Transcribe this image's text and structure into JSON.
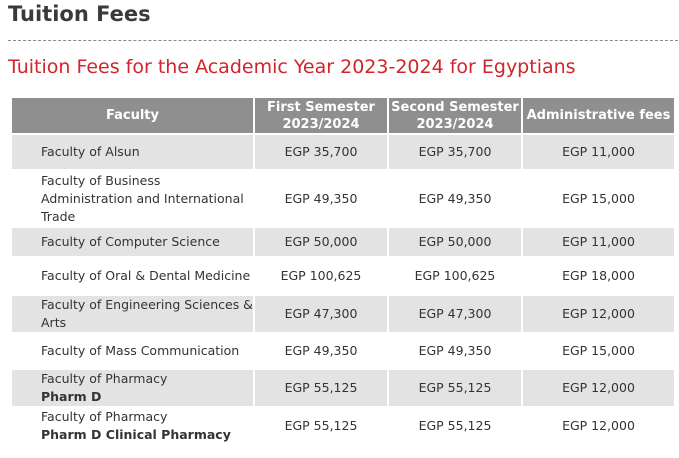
{
  "page": {
    "title": "Tuition Fees",
    "subtitle": "Tuition Fees for the Academic Year 2023-2024 for Egyptians"
  },
  "table": {
    "headers": {
      "faculty": "Faculty",
      "first_semester_line1": "First Semester",
      "first_semester_line2": "2023/2024",
      "second_semester_line1": "Second Semester",
      "second_semester_line2": "2023/2024",
      "admin_fees": "Administrative fees"
    },
    "rows": [
      {
        "faculty": "Faculty of Alsun",
        "program": "",
        "first": "EGP 35,700",
        "second": "EGP 35,700",
        "admin": "EGP 11,000"
      },
      {
        "faculty": "Faculty of Business Administration and International Trade",
        "program": "",
        "first": "EGP 49,350",
        "second": "EGP 49,350",
        "admin": "EGP 15,000"
      },
      {
        "faculty": "Faculty of Computer Science",
        "program": "",
        "first": "EGP 50,000",
        "second": "EGP 50,000",
        "admin": "EGP 11,000"
      },
      {
        "faculty": "Faculty of Oral & Dental Medicine",
        "program": "",
        "first": "EGP 100,625",
        "second": "EGP 100,625",
        "admin": "EGP 18,000"
      },
      {
        "faculty": "Faculty of Engineering Sciences & Arts",
        "program": "",
        "first": "EGP 47,300",
        "second": "EGP 47,300",
        "admin": "EGP 12,000"
      },
      {
        "faculty": "Faculty of Mass Communication",
        "program": "",
        "first": "EGP 49,350",
        "second": "EGP 49,350",
        "admin": "EGP 15,000"
      },
      {
        "faculty": "Faculty of Pharmacy",
        "program": "Pharm D",
        "first": "EGP 55,125",
        "second": "EGP 55,125",
        "admin": "EGP 12,000"
      },
      {
        "faculty": "Faculty of Pharmacy",
        "program": "Pharm D Clinical Pharmacy",
        "first": "EGP 55,125",
        "second": "EGP 55,125",
        "admin": "EGP 12,000"
      }
    ]
  }
}
